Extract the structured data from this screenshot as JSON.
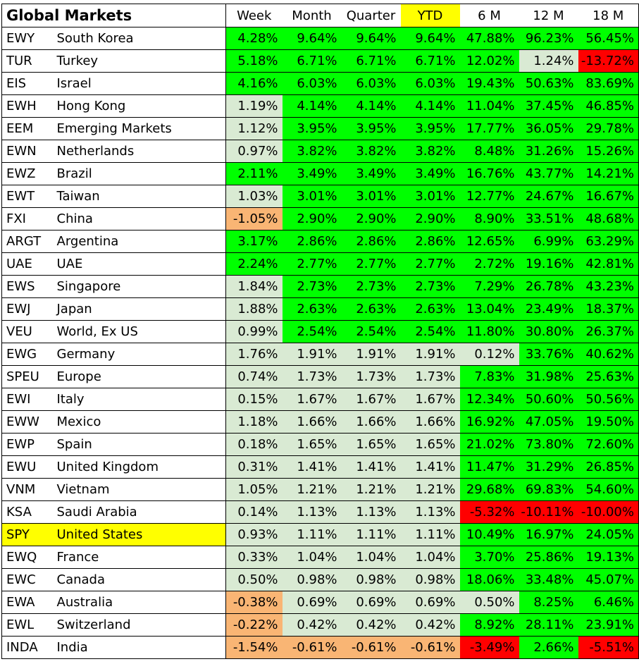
{
  "title": "Global Markets",
  "columns": [
    "Week",
    "Month",
    "Quarter",
    "YTD",
    "6 M",
    "12 M",
    "18 M"
  ],
  "colors": {
    "green": "#00ff00",
    "light": "#d9ead3",
    "orange": "#f9b574",
    "red": "#ff0000",
    "highlight": "#ffff00"
  },
  "rows": [
    {
      "ticker": "EWY",
      "name": "South Korea",
      "values": [
        "4.28%",
        "9.64%",
        "9.64%",
        "9.64%",
        "47.88%",
        "96.23%",
        "56.45%"
      ],
      "colors": [
        "g",
        "g",
        "g",
        "g",
        "g",
        "g",
        "g"
      ]
    },
    {
      "ticker": "TUR",
      "name": "Turkey",
      "values": [
        "5.18%",
        "6.71%",
        "6.71%",
        "6.71%",
        "12.02%",
        "1.24%",
        "-13.72%"
      ],
      "colors": [
        "g",
        "g",
        "g",
        "g",
        "g",
        "l",
        "r"
      ]
    },
    {
      "ticker": "EIS",
      "name": "Israel",
      "values": [
        "4.16%",
        "6.03%",
        "6.03%",
        "6.03%",
        "19.43%",
        "50.63%",
        "83.69%"
      ],
      "colors": [
        "g",
        "g",
        "g",
        "g",
        "g",
        "g",
        "g"
      ]
    },
    {
      "ticker": "EWH",
      "name": "Hong Kong",
      "values": [
        "1.19%",
        "4.14%",
        "4.14%",
        "4.14%",
        "11.04%",
        "37.45%",
        "46.85%"
      ],
      "colors": [
        "l",
        "g",
        "g",
        "g",
        "g",
        "g",
        "g"
      ]
    },
    {
      "ticker": "EEM",
      "name": "Emerging Markets",
      "values": [
        "1.12%",
        "3.95%",
        "3.95%",
        "3.95%",
        "17.77%",
        "36.05%",
        "29.78%"
      ],
      "colors": [
        "l",
        "g",
        "g",
        "g",
        "g",
        "g",
        "g"
      ]
    },
    {
      "ticker": "EWN",
      "name": "Netherlands",
      "values": [
        "0.97%",
        "3.82%",
        "3.82%",
        "3.82%",
        "8.48%",
        "31.26%",
        "15.26%"
      ],
      "colors": [
        "l",
        "g",
        "g",
        "g",
        "g",
        "g",
        "g"
      ]
    },
    {
      "ticker": "EWZ",
      "name": "Brazil",
      "values": [
        "2.11%",
        "3.49%",
        "3.49%",
        "3.49%",
        "16.76%",
        "43.77%",
        "14.21%"
      ],
      "colors": [
        "g",
        "g",
        "g",
        "g",
        "g",
        "g",
        "g"
      ]
    },
    {
      "ticker": "EWT",
      "name": "Taiwan",
      "values": [
        "1.03%",
        "3.01%",
        "3.01%",
        "3.01%",
        "12.77%",
        "24.67%",
        "16.67%"
      ],
      "colors": [
        "l",
        "g",
        "g",
        "g",
        "g",
        "g",
        "g"
      ]
    },
    {
      "ticker": "FXI",
      "name": "China",
      "values": [
        "-1.05%",
        "2.90%",
        "2.90%",
        "2.90%",
        "8.90%",
        "33.51%",
        "48.68%"
      ],
      "colors": [
        "o",
        "g",
        "g",
        "g",
        "g",
        "g",
        "g"
      ]
    },
    {
      "ticker": "ARGT",
      "name": "Argentina",
      "values": [
        "3.17%",
        "2.86%",
        "2.86%",
        "2.86%",
        "12.65%",
        "6.99%",
        "63.29%"
      ],
      "colors": [
        "g",
        "g",
        "g",
        "g",
        "g",
        "g",
        "g"
      ]
    },
    {
      "ticker": "UAE",
      "name": "UAE",
      "values": [
        "2.24%",
        "2.77%",
        "2.77%",
        "2.77%",
        "2.72%",
        "19.16%",
        "42.81%"
      ],
      "colors": [
        "g",
        "g",
        "g",
        "g",
        "g",
        "g",
        "g"
      ]
    },
    {
      "ticker": "EWS",
      "name": "Singapore",
      "values": [
        "1.84%",
        "2.73%",
        "2.73%",
        "2.73%",
        "7.29%",
        "26.78%",
        "43.23%"
      ],
      "colors": [
        "l",
        "g",
        "g",
        "g",
        "g",
        "g",
        "g"
      ]
    },
    {
      "ticker": "EWJ",
      "name": "Japan",
      "values": [
        "1.88%",
        "2.63%",
        "2.63%",
        "2.63%",
        "13.04%",
        "23.49%",
        "18.37%"
      ],
      "colors": [
        "l",
        "g",
        "g",
        "g",
        "g",
        "g",
        "g"
      ]
    },
    {
      "ticker": "VEU",
      "name": "World, Ex US",
      "values": [
        "0.99%",
        "2.54%",
        "2.54%",
        "2.54%",
        "11.80%",
        "30.80%",
        "26.37%"
      ],
      "colors": [
        "l",
        "g",
        "g",
        "g",
        "g",
        "g",
        "g"
      ]
    },
    {
      "ticker": "EWG",
      "name": "Germany",
      "values": [
        "1.76%",
        "1.91%",
        "1.91%",
        "1.91%",
        "0.12%",
        "33.76%",
        "40.62%"
      ],
      "colors": [
        "l",
        "l",
        "l",
        "l",
        "l",
        "g",
        "g"
      ]
    },
    {
      "ticker": "SPEU",
      "name": "Europe",
      "values": [
        "0.74%",
        "1.73%",
        "1.73%",
        "1.73%",
        "7.83%",
        "31.98%",
        "25.63%"
      ],
      "colors": [
        "l",
        "l",
        "l",
        "l",
        "g",
        "g",
        "g"
      ]
    },
    {
      "ticker": "EWI",
      "name": "Italy",
      "values": [
        "0.15%",
        "1.67%",
        "1.67%",
        "1.67%",
        "12.34%",
        "50.60%",
        "50.56%"
      ],
      "colors": [
        "l",
        "l",
        "l",
        "l",
        "g",
        "g",
        "g"
      ]
    },
    {
      "ticker": "EWW",
      "name": "Mexico",
      "values": [
        "1.18%",
        "1.66%",
        "1.66%",
        "1.66%",
        "16.92%",
        "47.05%",
        "19.50%"
      ],
      "colors": [
        "l",
        "l",
        "l",
        "l",
        "g",
        "g",
        "g"
      ]
    },
    {
      "ticker": "EWP",
      "name": "Spain",
      "values": [
        "0.18%",
        "1.65%",
        "1.65%",
        "1.65%",
        "21.02%",
        "73.80%",
        "72.60%"
      ],
      "colors": [
        "l",
        "l",
        "l",
        "l",
        "g",
        "g",
        "g"
      ]
    },
    {
      "ticker": "EWU",
      "name": "United Kingdom",
      "values": [
        "0.31%",
        "1.41%",
        "1.41%",
        "1.41%",
        "11.47%",
        "31.29%",
        "26.85%"
      ],
      "colors": [
        "l",
        "l",
        "l",
        "l",
        "g",
        "g",
        "g"
      ]
    },
    {
      "ticker": "VNM",
      "name": "Vietnam",
      "values": [
        "1.05%",
        "1.21%",
        "1.21%",
        "1.21%",
        "29.68%",
        "69.83%",
        "54.60%"
      ],
      "colors": [
        "l",
        "l",
        "l",
        "l",
        "g",
        "g",
        "g"
      ]
    },
    {
      "ticker": "KSA",
      "name": "Saudi Arabia",
      "values": [
        "0.14%",
        "1.13%",
        "1.13%",
        "1.13%",
        "-5.32%",
        "-10.11%",
        "-10.00%"
      ],
      "colors": [
        "l",
        "l",
        "l",
        "l",
        "r",
        "r",
        "r"
      ]
    },
    {
      "ticker": "SPY",
      "name": "United States",
      "values": [
        "0.93%",
        "1.11%",
        "1.11%",
        "1.11%",
        "10.49%",
        "16.97%",
        "24.05%"
      ],
      "colors": [
        "l",
        "l",
        "l",
        "l",
        "g",
        "g",
        "g"
      ],
      "highlight": true
    },
    {
      "ticker": "EWQ",
      "name": "France",
      "values": [
        "0.33%",
        "1.04%",
        "1.04%",
        "1.04%",
        "3.70%",
        "25.86%",
        "19.13%"
      ],
      "colors": [
        "l",
        "l",
        "l",
        "l",
        "g",
        "g",
        "g"
      ]
    },
    {
      "ticker": "EWC",
      "name": "Canada",
      "values": [
        "0.50%",
        "0.98%",
        "0.98%",
        "0.98%",
        "18.06%",
        "33.48%",
        "45.07%"
      ],
      "colors": [
        "l",
        "l",
        "l",
        "l",
        "g",
        "g",
        "g"
      ]
    },
    {
      "ticker": "EWA",
      "name": "Australia",
      "values": [
        "-0.38%",
        "0.69%",
        "0.69%",
        "0.69%",
        "0.50%",
        "8.25%",
        "6.46%"
      ],
      "colors": [
        "o",
        "l",
        "l",
        "l",
        "l",
        "g",
        "g"
      ]
    },
    {
      "ticker": "EWL",
      "name": "Switzerland",
      "values": [
        "-0.22%",
        "0.42%",
        "0.42%",
        "0.42%",
        "8.92%",
        "28.11%",
        "23.91%"
      ],
      "colors": [
        "o",
        "l",
        "l",
        "l",
        "g",
        "g",
        "g"
      ]
    },
    {
      "ticker": "INDA",
      "name": "India",
      "values": [
        "-1.54%",
        "-0.61%",
        "-0.61%",
        "-0.61%",
        "-3.49%",
        "2.66%",
        "-5.51%"
      ],
      "colors": [
        "o",
        "o",
        "o",
        "o",
        "r",
        "g",
        "r"
      ]
    }
  ]
}
